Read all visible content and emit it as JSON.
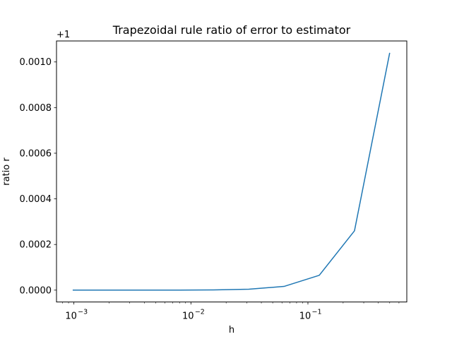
{
  "chart_data": {
    "type": "line",
    "title": "Trapezoidal rule ratio of error to estimator",
    "xlabel": "h",
    "ylabel": "ratio r",
    "offset_label": "+1",
    "x_scale": "log",
    "xlim": [
      0.00071,
      0.7
    ],
    "ylim": [
      -5.2e-05,
      0.001092
    ],
    "x_ticks": [
      {
        "value": 0.001,
        "base": "10",
        "exp": "−3"
      },
      {
        "value": 0.01,
        "base": "10",
        "exp": "−2"
      },
      {
        "value": 0.1,
        "base": "10",
        "exp": "−1"
      }
    ],
    "y_ticks": [
      {
        "value": 0.0,
        "label": "0.0000"
      },
      {
        "value": 0.0002,
        "label": "0.0002"
      },
      {
        "value": 0.0004,
        "label": "0.0004"
      },
      {
        "value": 0.0006,
        "label": "0.0006"
      },
      {
        "value": 0.0008,
        "label": "0.0008"
      },
      {
        "value": 0.001,
        "label": "0.0010"
      }
    ],
    "grid": false,
    "series": [
      {
        "color": "#1f77b4",
        "x": [
          0.5,
          0.25,
          0.125,
          0.0625,
          0.03125,
          0.015625,
          0.0078125,
          0.00390625,
          0.001953125,
          0.0009765625
        ],
        "y": [
          0.00104,
          0.00026,
          6.5e-05,
          1.63e-05,
          4.1e-06,
          1e-06,
          2.5e-07,
          6e-08,
          1.6e-08,
          4e-09
        ]
      }
    ]
  }
}
